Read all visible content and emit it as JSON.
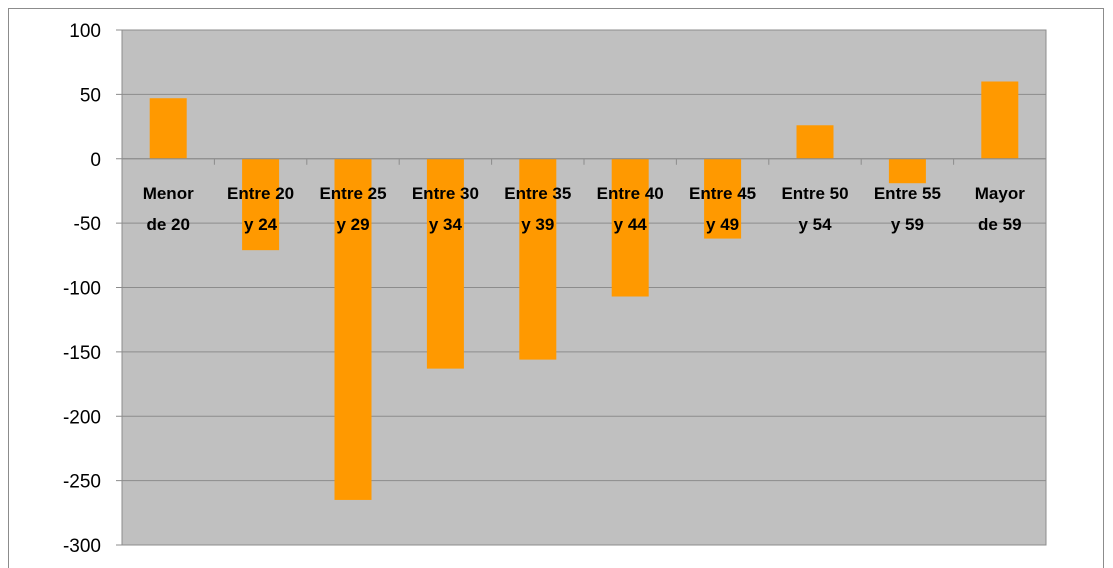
{
  "chart_data": {
    "type": "bar",
    "categories": [
      [
        "Menor",
        "de 20"
      ],
      [
        "Entre 20",
        "y 24"
      ],
      [
        "Entre 25",
        "y 29"
      ],
      [
        "Entre 30",
        "y 34"
      ],
      [
        "Entre 35",
        "y 39"
      ],
      [
        "Entre 40",
        "y 44"
      ],
      [
        "Entre 45",
        "y 49"
      ],
      [
        "Entre 50",
        "y 54"
      ],
      [
        "Entre 55",
        "y 59"
      ],
      [
        "Mayor",
        "de 59"
      ]
    ],
    "values": [
      47,
      -71,
      -265,
      -163,
      -156,
      -107,
      -62,
      26,
      -19,
      60
    ],
    "ylim": [
      -300,
      100
    ],
    "yticks": [
      100,
      50,
      0,
      -50,
      -100,
      -150,
      -200,
      -250,
      -300
    ],
    "ytick_labels": [
      "100",
      "50",
      "0",
      "-50",
      "-100",
      "-150",
      "-200",
      "-250",
      "-300"
    ],
    "grid": true,
    "title": "",
    "xlabel": "",
    "ylabel": "",
    "colors": {
      "bar": "#ff9900",
      "plot_background": "#c0c0c0",
      "gridline": "#8c8c8c",
      "axis": "#8c8c8c"
    }
  }
}
